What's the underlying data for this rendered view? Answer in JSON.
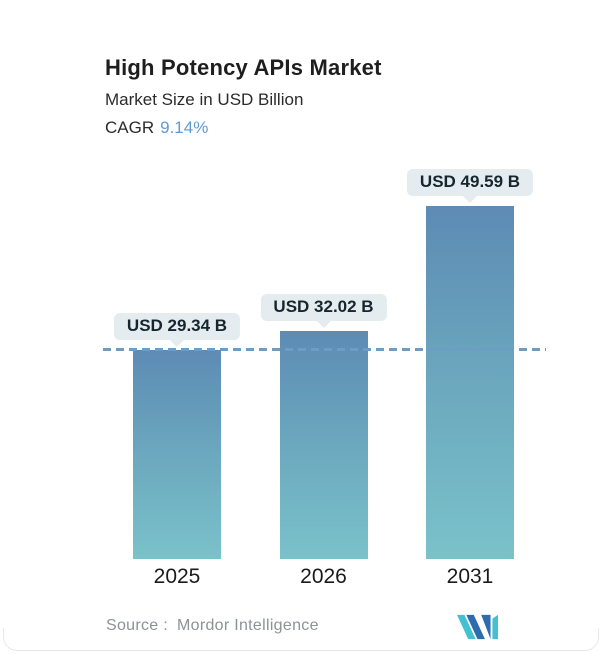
{
  "header": {
    "title": "High Potency APIs Market",
    "subtitle": "Market Size in USD Billion",
    "cagr_label": "CAGR",
    "cagr_value": "9.14%"
  },
  "footer": {
    "source_label": "Source :",
    "source_value": "Mordor Intelligence",
    "logo": "mordor-intelligence-logo"
  },
  "colors": {
    "accent_blue": "#5f9bd1",
    "bar_gradient_top": "#5d8bb4",
    "bar_gradient_bottom": "#7ac2ca",
    "dashed_line": "#6d9cc5",
    "callout_bg": "#e4ecef",
    "callout_text": "#16262e",
    "source_text": "#8d9297",
    "logo_blue": "#2e6cb0",
    "logo_teal": "#45c0d1"
  },
  "chart_data": {
    "type": "bar",
    "title": "High Potency APIs Market",
    "subtitle": "Market Size in USD Billion",
    "unit": "USD Billion",
    "cagr": "9.14%",
    "categories": [
      "2025",
      "2026",
      "2031"
    ],
    "values": [
      29.34,
      32.02,
      49.59
    ],
    "value_labels": [
      "USD 29.34 B",
      "USD 32.02 B",
      "USD 49.59 B"
    ],
    "ylim": [
      0,
      52
    ],
    "gridlines": false,
    "legend": false,
    "reference_line": {
      "value": 29.34,
      "style": "dashed",
      "note": "level of first bar (2025)"
    }
  }
}
